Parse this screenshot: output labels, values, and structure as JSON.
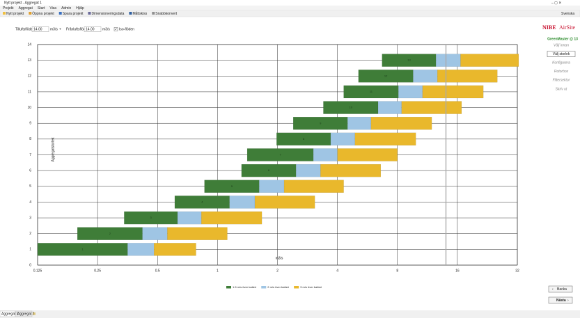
{
  "window": {
    "title": "Nytt projekt - Aggregat 1"
  },
  "menu": [
    "Projekt",
    "Aggregat",
    "Start",
    "Visa",
    "Admin",
    "Hjälp"
  ],
  "toolbar": [
    "Nytt projekt",
    "Öppna projekt",
    "Spara projekt",
    "Dimensioneringsdata",
    "Måttskiss",
    "Snabbkonvert"
  ],
  "language": "Svenska",
  "controls": {
    "supply_label": "Tilluftsflöde",
    "supply_value": "14.00",
    "supply_unit": "m3/s",
    "link": "+",
    "exhaust_label": "Frånluftsflöde",
    "exhaust_value": "14.00",
    "exhaust_unit": "m3/s",
    "iso_label": "Iso-flöden"
  },
  "sidebar": {
    "brand": "NIBE",
    "brand2": "AirSite",
    "product": "GreenMaster @ 13",
    "steps": [
      "Välj innan",
      "Välj storlek",
      "Konfigurera",
      "Rotorbox",
      "Filtersektor",
      "Skriv ut"
    ],
    "active_step": 1
  },
  "nav": {
    "back": "Backa",
    "next": "Nästa"
  },
  "tabs": [
    "Aggregat 1",
    "Aggregat 2"
  ],
  "chart_data": {
    "type": "bar",
    "orientation": "horizontal",
    "x_log": true,
    "grid": true,
    "y_label": "Aggregatstorlek",
    "x_label": "m3/s",
    "y": [
      1,
      2,
      3,
      4,
      5,
      6,
      7,
      8,
      9,
      10,
      11,
      12,
      13
    ],
    "starts": [
      0.125,
      0.198,
      0.34,
      0.61,
      0.86,
      1.32,
      1.41,
      1.98,
      2.4,
      3.4,
      4.3,
      5.1,
      6.7
    ],
    "series": [
      {
        "name": "1.5 m/s över batteri",
        "color": "#3f7d38",
        "values": [
          0.354,
          0.42,
          0.63,
          1.15,
          1.62,
          2.48,
          3.03,
          3.7,
          4.5,
          6.4,
          8.1,
          9.6,
          12.5
        ]
      },
      {
        "name": "2 m/s över batteri",
        "color": "#9fc5e4",
        "values": [
          0.48,
          0.56,
          0.83,
          1.54,
          2.16,
          3.29,
          4.0,
          4.9,
          5.9,
          8.4,
          10.7,
          12.7,
          16.6
        ]
      },
      {
        "name": "3 m/s över batteri",
        "color": "#e9b82c",
        "values": [
          0.78,
          1.12,
          1.67,
          3.08,
          4.3,
          6.6,
          8.0,
          9.9,
          11.9,
          16.8,
          21.6,
          25.4,
          32.5
        ]
      }
    ],
    "xlim": [
      0.125,
      32
    ],
    "xticks": [
      0.125,
      0.25,
      0.5,
      1,
      2,
      4,
      8,
      16,
      32
    ],
    "ylim": [
      0,
      14
    ],
    "yticks": [
      0,
      1,
      2,
      3,
      4,
      5,
      6,
      7,
      8,
      9,
      10,
      11,
      12,
      13,
      14
    ]
  }
}
